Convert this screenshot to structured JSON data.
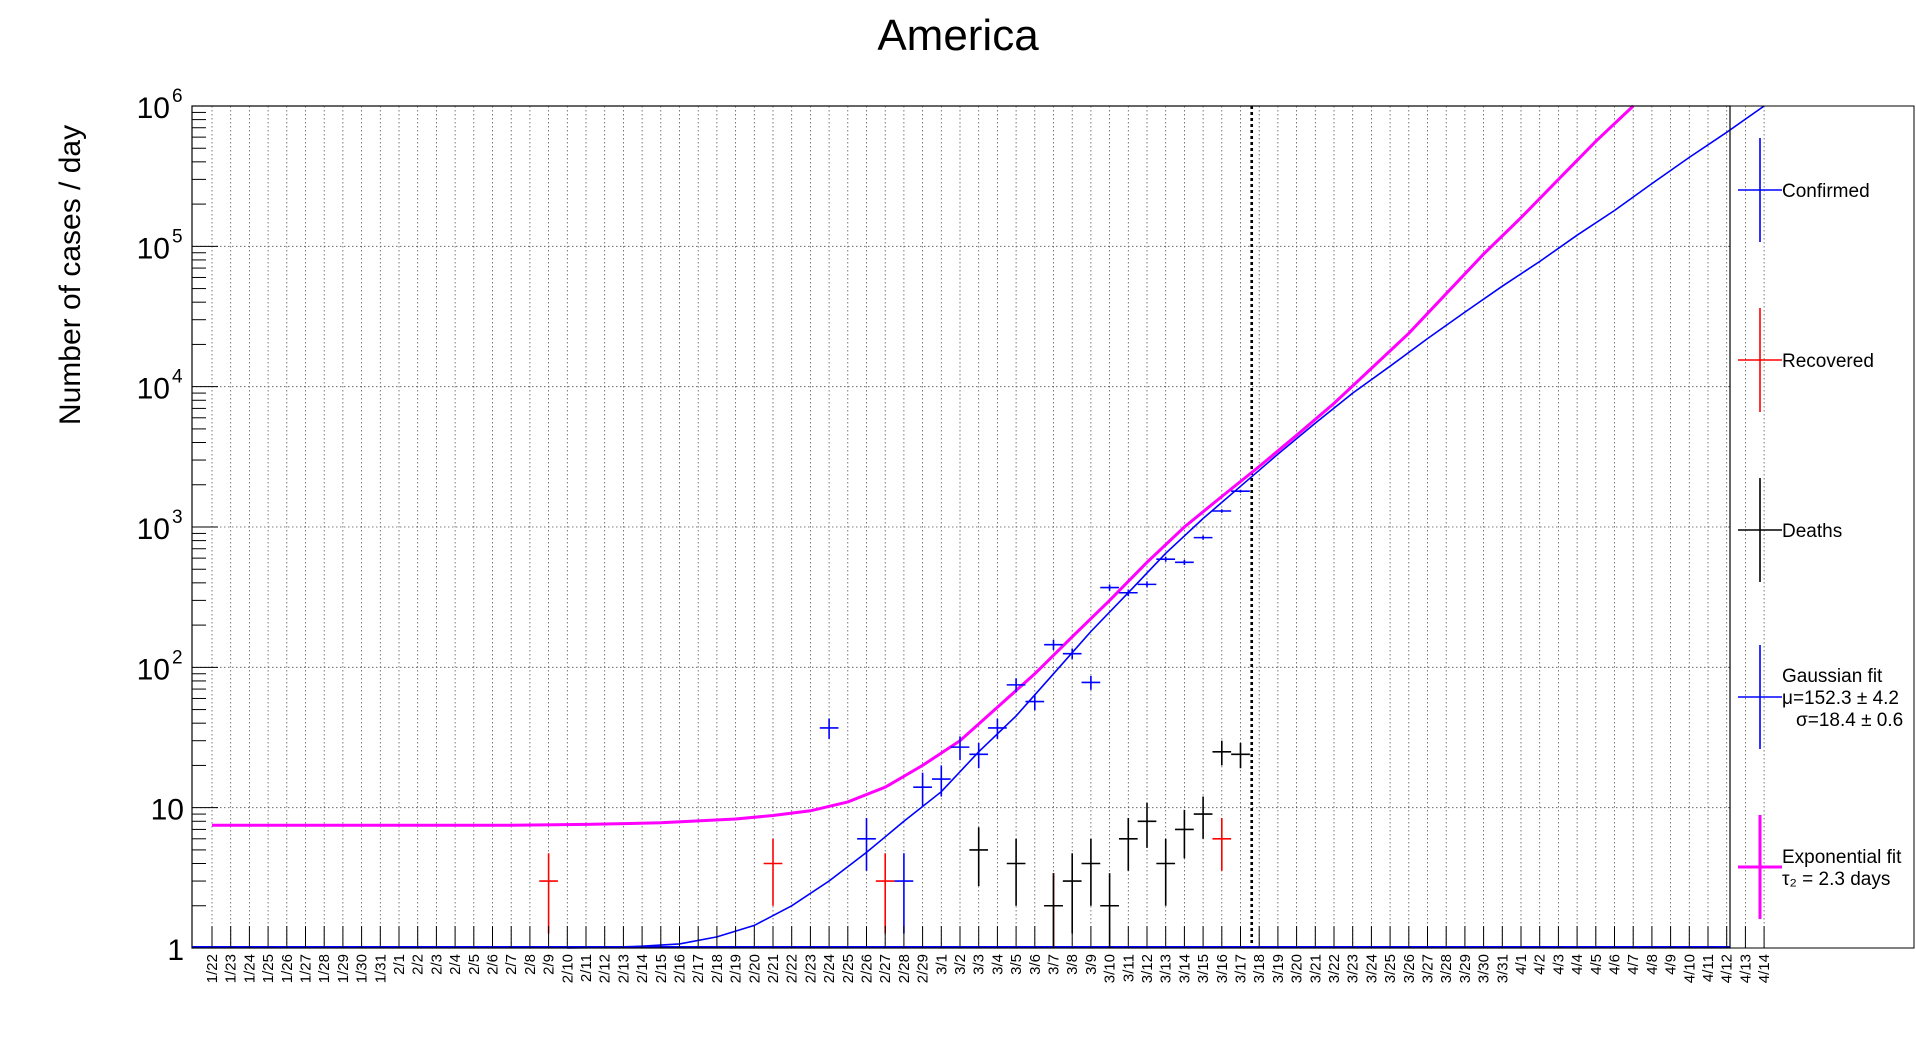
{
  "chart_data": {
    "type": "scatter",
    "title": "America",
    "xlabel": "",
    "ylabel": "Number of cases / day",
    "y_scale": "log",
    "ylim": [
      1,
      1000000
    ],
    "y_tick_labels": [
      {
        "value": 1,
        "base": "1",
        "exp": ""
      },
      {
        "value": 10,
        "base": "10",
        "exp": ""
      },
      {
        "value": 100,
        "base": "10",
        "exp": "2"
      },
      {
        "value": 1000,
        "base": "10",
        "exp": "3"
      },
      {
        "value": 10000,
        "base": "10",
        "exp": "4"
      },
      {
        "value": 100000,
        "base": "10",
        "exp": "5"
      },
      {
        "value": 1000000,
        "base": "10",
        "exp": "6"
      }
    ],
    "grid": true,
    "x_tick_labels": [
      "1/22",
      "1/23",
      "1/24",
      "1/25",
      "1/26",
      "1/27",
      "1/28",
      "1/29",
      "1/30",
      "1/31",
      "2/1",
      "2/2",
      "2/3",
      "2/4",
      "2/5",
      "2/6",
      "2/7",
      "2/8",
      "2/9",
      "2/10",
      "2/11",
      "2/12",
      "2/13",
      "2/14",
      "2/15",
      "2/16",
      "2/17",
      "2/18",
      "2/19",
      "2/20",
      "2/21",
      "2/22",
      "2/23",
      "2/24",
      "2/25",
      "2/26",
      "2/27",
      "2/28",
      "2/29",
      "3/1",
      "3/2",
      "3/3",
      "3/4",
      "3/5",
      "3/6",
      "3/7",
      "3/8",
      "3/9",
      "3/10",
      "3/11",
      "3/12",
      "3/13",
      "3/14",
      "3/15",
      "3/16",
      "3/17",
      "3/18",
      "3/19",
      "3/20",
      "3/21",
      "3/22",
      "3/23",
      "3/24",
      "3/25",
      "3/26",
      "3/27",
      "3/28",
      "3/29",
      "3/30",
      "3/31",
      "4/1",
      "4/2",
      "4/3",
      "4/4",
      "4/5",
      "4/6",
      "4/7",
      "4/8",
      "4/9",
      "4/10",
      "4/11",
      "4/12",
      "4/13",
      "4/14"
    ],
    "current_day_marker": "3/17",
    "legend_position": "right",
    "series": [
      {
        "name": "Confirmed",
        "color": "#0000ff",
        "points": [
          [
            "2/24",
            37
          ],
          [
            "2/26",
            6
          ],
          [
            "2/28",
            3
          ],
          [
            "2/29",
            14
          ],
          [
            "3/1",
            16
          ],
          [
            "3/2",
            27
          ],
          [
            "3/3",
            24
          ],
          [
            "3/4",
            37
          ],
          [
            "3/5",
            75
          ],
          [
            "3/6",
            57
          ],
          [
            "3/7",
            145
          ],
          [
            "3/8",
            125
          ],
          [
            "3/9",
            78
          ],
          [
            "3/10",
            370
          ],
          [
            "3/11",
            340
          ],
          [
            "3/12",
            390
          ],
          [
            "3/13",
            590
          ],
          [
            "3/14",
            560
          ],
          [
            "3/15",
            840
          ],
          [
            "3/16",
            1300
          ],
          [
            "3/17",
            1800
          ]
        ]
      },
      {
        "name": "Recovered",
        "color": "#ff0000",
        "points": [
          [
            "2/9",
            3
          ],
          [
            "2/21",
            4
          ],
          [
            "2/27",
            3
          ],
          [
            "3/7",
            2
          ],
          [
            "3/16",
            6
          ]
        ]
      },
      {
        "name": "Deaths",
        "color": "#000000",
        "points": [
          [
            "3/3",
            5
          ],
          [
            "3/5",
            4
          ],
          [
            "3/7",
            2
          ],
          [
            "3/8",
            3
          ],
          [
            "3/9",
            4
          ],
          [
            "3/10",
            2
          ],
          [
            "3/11",
            6
          ],
          [
            "3/12",
            8
          ],
          [
            "3/13",
            4
          ],
          [
            "3/14",
            7
          ],
          [
            "3/15",
            9
          ],
          [
            "3/16",
            25
          ],
          [
            "3/17",
            24
          ]
        ]
      }
    ],
    "fits": {
      "gaussian": {
        "color": "#0000ff",
        "mu": "152.3",
        "mu_err": "4.2",
        "sigma": "18.4",
        "sigma_err": "0.6",
        "curve": [
          [
            "2/10",
            1.0
          ],
          [
            "2/12",
            1.01
          ],
          [
            "2/14",
            1.03
          ],
          [
            "2/16",
            1.07
          ],
          [
            "2/18",
            1.2
          ],
          [
            "2/20",
            1.45
          ],
          [
            "2/22",
            2.0
          ],
          [
            "2/24",
            3.0
          ],
          [
            "2/26",
            4.8
          ],
          [
            "2/28",
            8
          ],
          [
            "3/1",
            13
          ],
          [
            "3/3",
            25
          ],
          [
            "3/5",
            45
          ],
          [
            "3/7",
            90
          ],
          [
            "3/9",
            180
          ],
          [
            "3/11",
            340
          ],
          [
            "3/13",
            650
          ],
          [
            "3/15",
            1150
          ],
          [
            "3/17",
            1950
          ],
          [
            "3/19",
            3300
          ],
          [
            "3/21",
            5500
          ],
          [
            "3/23",
            9000
          ],
          [
            "3/25",
            14000
          ],
          [
            "3/27",
            22000
          ],
          [
            "3/29",
            34000
          ],
          [
            "3/31",
            52000
          ],
          [
            "4/2",
            78000
          ],
          [
            "4/4",
            120000
          ],
          [
            "4/6",
            180000
          ],
          [
            "4/8",
            280000
          ],
          [
            "4/10",
            430000
          ],
          [
            "4/12",
            650000
          ],
          [
            "4/14",
            1000000
          ]
        ]
      },
      "exponential": {
        "color": "#ff00ff",
        "tau2": "2.3",
        "curve": [
          [
            "1/22",
            7.5
          ],
          [
            "1/26",
            7.5
          ],
          [
            "1/30",
            7.5
          ],
          [
            "2/3",
            7.5
          ],
          [
            "2/7",
            7.5
          ],
          [
            "2/11",
            7.6
          ],
          [
            "2/15",
            7.8
          ],
          [
            "2/19",
            8.3
          ],
          [
            "2/21",
            8.8
          ],
          [
            "2/23",
            9.5
          ],
          [
            "2/25",
            11
          ],
          [
            "2/27",
            14
          ],
          [
            "2/29",
            20
          ],
          [
            "3/2",
            30
          ],
          [
            "3/4",
            52
          ],
          [
            "3/6",
            90
          ],
          [
            "3/8",
            165
          ],
          [
            "3/10",
            300
          ],
          [
            "3/12",
            560
          ],
          [
            "3/14",
            1000
          ],
          [
            "3/16",
            1650
          ],
          [
            "3/18",
            2700
          ],
          [
            "3/20",
            4500
          ],
          [
            "3/22",
            7600
          ],
          [
            "3/24",
            13500
          ],
          [
            "3/26",
            24000
          ],
          [
            "3/28",
            46000
          ],
          [
            "3/30",
            88000
          ],
          [
            "4/1",
            160000
          ],
          [
            "4/3",
            300000
          ],
          [
            "4/5",
            560000
          ],
          [
            "4/7",
            1000000
          ]
        ]
      }
    },
    "legend": [
      {
        "label": "Confirmed",
        "color": "#0000ff"
      },
      {
        "label": "Recovered",
        "color": "#ff0000"
      },
      {
        "label": "Deaths",
        "color": "#000000"
      },
      {
        "label": "Gaussian fit",
        "color": "#0000ff"
      },
      {
        "label": "Exponential fit",
        "color": "#ff00ff"
      }
    ]
  }
}
